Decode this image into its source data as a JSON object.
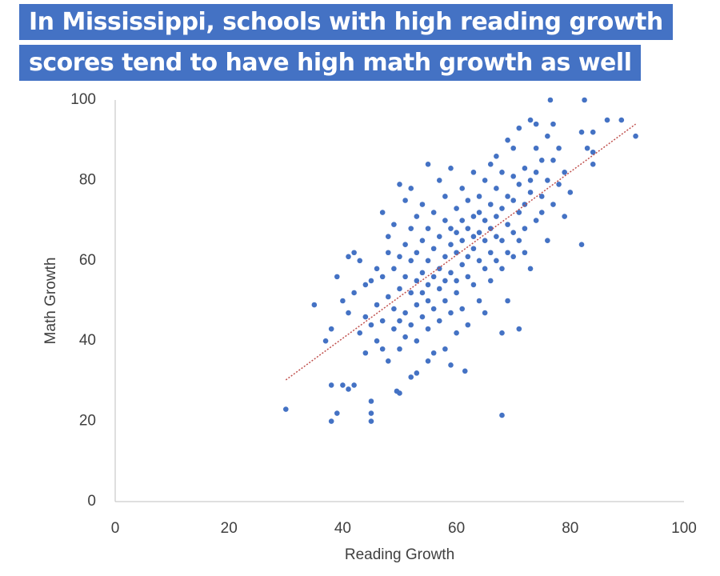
{
  "chart_data": {
    "type": "scatter",
    "title": [
      "In Mississippi, schools with high reading growth",
      "scores tend to have high math growth as well"
    ],
    "xlabel": "Reading Growth",
    "ylabel": "Math Growth",
    "xlim": [
      0,
      100
    ],
    "ylim": [
      0,
      100
    ],
    "xticks": [
      0,
      20,
      40,
      60,
      80,
      100
    ],
    "yticks": [
      0,
      20,
      40,
      60,
      80,
      100
    ],
    "grid": false,
    "color": "#4472c4",
    "trendline": {
      "x": [
        30,
        91.5
      ],
      "y": [
        30.3,
        94
      ],
      "color": "#c0504d"
    },
    "x": [
      30,
      38,
      39,
      38,
      40,
      41,
      42,
      45,
      45,
      45,
      35,
      37,
      38,
      76.5,
      82.5,
      86.5,
      89,
      91.5,
      68,
      82,
      49.5,
      50,
      52,
      53,
      55,
      59,
      61.5,
      39,
      40,
      41,
      41,
      42,
      42,
      43,
      43,
      44,
      44,
      44,
      45,
      45,
      46,
      46,
      46,
      47,
      47,
      47,
      47,
      48,
      48,
      48,
      48,
      49,
      49,
      49,
      49,
      50,
      50,
      50,
      50,
      50,
      51,
      51,
      51,
      51,
      51,
      52,
      52,
      52,
      52,
      52,
      53,
      53,
      53,
      53,
      53,
      54,
      54,
      54,
      54,
      54,
      55,
      55,
      55,
      55,
      55,
      55,
      56,
      56,
      56,
      56,
      56,
      57,
      57,
      57,
      57,
      57,
      58,
      58,
      58,
      58,
      58,
      58,
      59,
      59,
      59,
      59,
      59,
      60,
      60,
      60,
      60,
      60,
      60,
      61,
      61,
      61,
      61,
      61,
      62,
      62,
      62,
      62,
      62,
      63,
      63,
      63,
      63,
      63,
      64,
      64,
      64,
      64,
      64,
      65,
      65,
      65,
      65,
      65,
      66,
      66,
      66,
      66,
      66,
      67,
      67,
      67,
      67,
      67,
      68,
      68,
      68,
      68,
      68,
      69,
      69,
      69,
      69,
      69,
      70,
      70,
      70,
      70,
      70,
      71,
      71,
      71,
      71,
      71,
      72,
      72,
      72,
      72,
      73,
      73,
      73,
      73,
      74,
      74,
      74,
      74,
      75,
      75,
      75,
      76,
      76,
      76,
      77,
      77,
      77,
      78,
      78,
      79,
      79,
      80,
      82,
      83,
      84,
      84,
      84
    ],
    "y": [
      23,
      20,
      22,
      29,
      29,
      28,
      29,
      25,
      22,
      20,
      49,
      40,
      43,
      100,
      100,
      95,
      95,
      91,
      21.5,
      64,
      27.5,
      27,
      31,
      32,
      35,
      34,
      32.5,
      56,
      50,
      47,
      61,
      62,
      52,
      60,
      42,
      46,
      54,
      37,
      55,
      44,
      49,
      58,
      40,
      56,
      72,
      45,
      38,
      62,
      51,
      35,
      66,
      48,
      58,
      43,
      69,
      53,
      61,
      79,
      45,
      38,
      56,
      64,
      75,
      47,
      41,
      60,
      52,
      68,
      44,
      78,
      55,
      62,
      71,
      49,
      40,
      57,
      65,
      52,
      46,
      74,
      84,
      60,
      54,
      68,
      43,
      50,
      63,
      56,
      72,
      48,
      37,
      66,
      58,
      53,
      80,
      45,
      61,
      70,
      55,
      76,
      50,
      38,
      64,
      57,
      83,
      68,
      47,
      62,
      73,
      55,
      67,
      42,
      52,
      65,
      59,
      78,
      70,
      48,
      68,
      61,
      75,
      56,
      44,
      63,
      71,
      82,
      54,
      66,
      67,
      60,
      76,
      72,
      50,
      65,
      80,
      58,
      70,
      47,
      68,
      62,
      74,
      84,
      55,
      71,
      66,
      78,
      60,
      86,
      73,
      65,
      82,
      58,
      42,
      76,
      69,
      90,
      62,
      50,
      75,
      81,
      67,
      88,
      61,
      79,
      72,
      65,
      93,
      43,
      74,
      83,
      68,
      62,
      80,
      95,
      77,
      58,
      82,
      70,
      88,
      94,
      85,
      76,
      72,
      91,
      80,
      65,
      85,
      94,
      74,
      88,
      79,
      82,
      71,
      77,
      92,
      88,
      92,
      87,
      84
    ]
  }
}
